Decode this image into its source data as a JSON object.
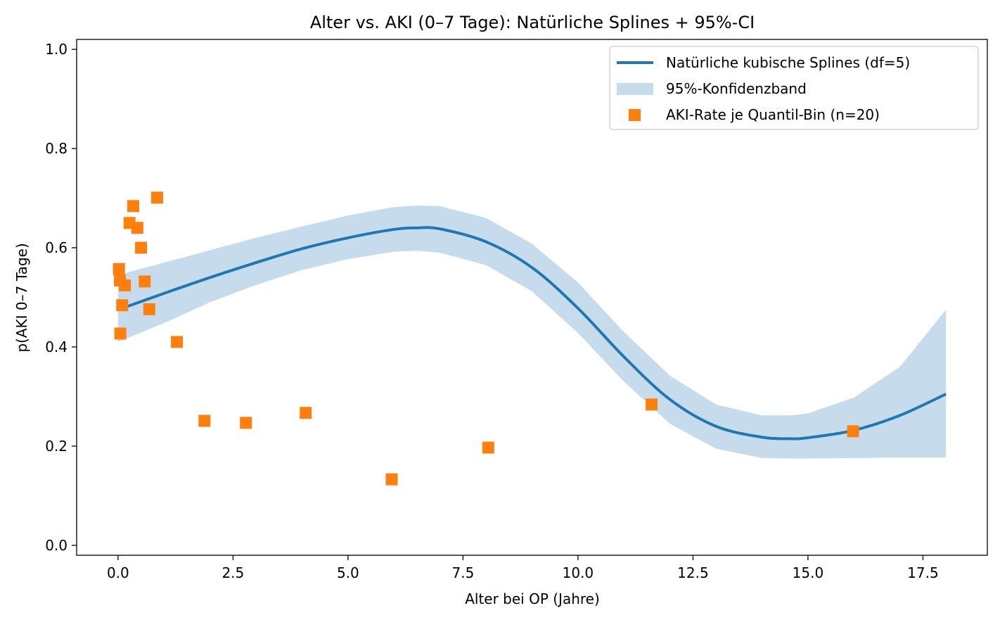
{
  "chart_data": {
    "type": "line",
    "title": "Alter vs. AKI (0–7 Tage): Natürliche Splines + 95%-CI",
    "xlabel": "Alter bei OP (Jahre)",
    "ylabel": "p(AKI 0–7 Tage)",
    "xlim": [
      -0.9,
      18.9
    ],
    "ylim": [
      -0.02,
      1.02
    ],
    "xticks": [
      0.0,
      2.5,
      5.0,
      7.5,
      10.0,
      12.5,
      15.0,
      17.5
    ],
    "xtick_labels": [
      "0.0",
      "2.5",
      "5.0",
      "7.5",
      "10.0",
      "12.5",
      "15.0",
      "17.5"
    ],
    "yticks": [
      0.0,
      0.2,
      0.4,
      0.6,
      0.8,
      1.0
    ],
    "ytick_labels": [
      "0.0",
      "0.2",
      "0.4",
      "0.6",
      "0.8",
      "1.0"
    ],
    "grid": false,
    "legend_position": "top-right",
    "spline": {
      "name": "Natürliche kubische Splines (df=5)",
      "color": "#1f77b4",
      "x": [
        0.0,
        1.0,
        2.0,
        3.0,
        4.0,
        5.0,
        6.0,
        6.5,
        7.0,
        8.0,
        9.0,
        10.0,
        11.0,
        12.0,
        13.0,
        14.0,
        14.6,
        15.0,
        16.0,
        17.0,
        18.0
      ],
      "y": [
        0.475,
        0.508,
        0.54,
        0.57,
        0.598,
        0.62,
        0.637,
        0.64,
        0.638,
        0.612,
        0.56,
        0.478,
        0.38,
        0.294,
        0.24,
        0.218,
        0.215,
        0.217,
        0.232,
        0.262,
        0.305
      ]
    },
    "band": {
      "name": "95%-Konfidenzband",
      "color": "#c6dbec",
      "x": [
        0.0,
        1.0,
        2.0,
        3.0,
        4.0,
        5.0,
        6.0,
        6.5,
        7.0,
        8.0,
        9.0,
        10.0,
        11.0,
        12.0,
        13.0,
        14.0,
        14.6,
        15.0,
        16.0,
        17.0,
        18.0
      ],
      "lower": [
        0.41,
        0.448,
        0.49,
        0.525,
        0.555,
        0.577,
        0.592,
        0.594,
        0.59,
        0.565,
        0.512,
        0.428,
        0.33,
        0.245,
        0.195,
        0.176,
        0.175,
        0.175,
        0.176,
        0.177,
        0.177
      ],
      "upper": [
        0.545,
        0.57,
        0.595,
        0.62,
        0.643,
        0.665,
        0.682,
        0.685,
        0.684,
        0.66,
        0.608,
        0.53,
        0.43,
        0.342,
        0.284,
        0.262,
        0.262,
        0.266,
        0.298,
        0.36,
        0.475
      ]
    },
    "points": {
      "name": "AKI-Rate je Quantil-Bin (n=20)",
      "color": "#ff7f0e",
      "x": [
        0.02,
        0.04,
        0.05,
        0.09,
        0.15,
        0.25,
        0.33,
        0.42,
        0.5,
        0.58,
        0.68,
        0.85,
        1.28,
        1.88,
        2.78,
        4.08,
        5.95,
        8.05,
        11.6,
        15.98
      ],
      "y": [
        0.557,
        0.534,
        0.427,
        0.484,
        0.524,
        0.65,
        0.684,
        0.64,
        0.6,
        0.532,
        0.476,
        0.701,
        0.41,
        0.251,
        0.247,
        0.267,
        0.133,
        0.197,
        0.284,
        0.23
      ]
    }
  }
}
